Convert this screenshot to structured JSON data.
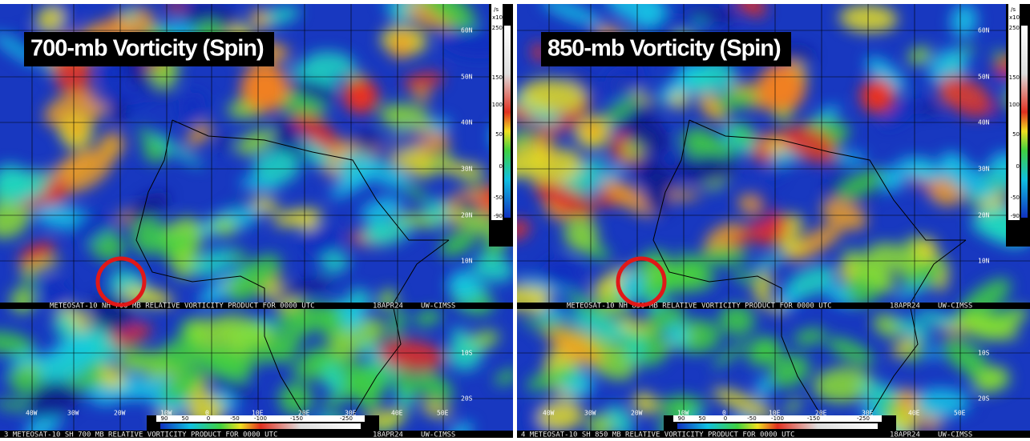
{
  "panels": [
    {
      "title": "700-mb Vorticity (Spin)",
      "nh_caption": "METEOSAT-10 NH 700 MB RELATIVE VORTICITY PRODUCT FOR 0000 UTC",
      "sh_caption": "3   METEOSAT-10 SH 700 MB RELATIVE VORTICITY PRODUCT FOR 0000 UTC",
      "date": "18APR24",
      "source": "UW-CIMSS"
    },
    {
      "title": "850-mb Vorticity (Spin)",
      "nh_caption": "METEOSAT-10 NH 850 MB RELATIVE VORTICITY PRODUCT FOR 0000 UTC",
      "sh_caption": "4   METEOSAT-10 SH 850 MB RELATIVE VORTICITY PRODUCT FOR 0000 UTC",
      "date": "18APR24",
      "source": "UW-CIMSS"
    }
  ],
  "nh_lat_labels": [
    "60N",
    "50N",
    "40N",
    "30N",
    "20N",
    "10N"
  ],
  "sh_lat_labels": [
    "10S",
    "20S"
  ],
  "lon_labels": [
    "40W",
    "30W",
    "20W",
    "10W",
    "0",
    "10E",
    "20E",
    "30E",
    "40E",
    "50E"
  ],
  "colorbar_unit": "/s",
  "colorbar_scale": "x10-6",
  "nh_colorbar_ticks": [
    250,
    150,
    100,
    50,
    0,
    -50,
    -90
  ],
  "sh_colorbar_ticks": [
    90,
    50,
    0,
    -50,
    -100,
    -150,
    -250
  ]
}
